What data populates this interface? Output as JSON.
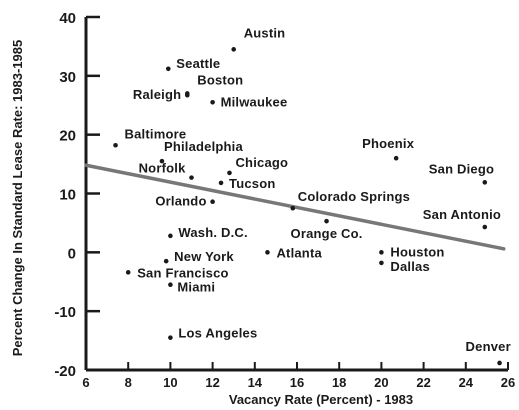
{
  "chart_data": {
    "type": "scatter",
    "xlabel": "Vacancy Rate (Percent) - 1983",
    "ylabel": "Percent Change In Standard Lease Rate: 1983-1985",
    "xlim": [
      6,
      26
    ],
    "ylim": [
      -20,
      40
    ],
    "x_ticks": [
      6,
      8,
      10,
      12,
      14,
      16,
      18,
      20,
      22,
      24,
      26
    ],
    "y_ticks": [
      -20,
      -10,
      0,
      10,
      20,
      30,
      40
    ],
    "grid": false,
    "trendline": {
      "x": [
        6,
        25.8
      ],
      "y": [
        14.8,
        0.6
      ]
    },
    "points": [
      {
        "label": "Austin",
        "x": 13.0,
        "y": 34.5
      },
      {
        "label": "Seattle",
        "x": 9.9,
        "y": 31.2
      },
      {
        "label": "Boston",
        "x": 10.8,
        "y": 27.0
      },
      {
        "label": "Raleigh",
        "x": 10.8,
        "y": 26.7
      },
      {
        "label": "Milwaukee",
        "x": 12.0,
        "y": 25.5
      },
      {
        "label": "Baltimore",
        "x": 7.4,
        "y": 18.2
      },
      {
        "label": "Philadelphia",
        "x": 9.6,
        "y": 15.5
      },
      {
        "label": "Chicago",
        "x": 12.8,
        "y": 13.5
      },
      {
        "label": "Norfolk",
        "x": 11.0,
        "y": 12.7
      },
      {
        "label": "Tucson",
        "x": 12.4,
        "y": 11.8
      },
      {
        "label": "Orlando",
        "x": 12.0,
        "y": 8.6
      },
      {
        "label": "Colorado Springs",
        "x": 15.8,
        "y": 7.5
      },
      {
        "label": "Orange Co.",
        "x": 17.4,
        "y": 5.3
      },
      {
        "label": "Wash. D.C.",
        "x": 10.0,
        "y": 2.8
      },
      {
        "label": "Phoenix",
        "x": 20.7,
        "y": 16.0
      },
      {
        "label": "San Diego",
        "x": 24.9,
        "y": 11.9
      },
      {
        "label": "San Antonio",
        "x": 24.9,
        "y": 4.3
      },
      {
        "label": "Houston",
        "x": 20.0,
        "y": 0.0
      },
      {
        "label": "Dallas",
        "x": 20.0,
        "y": -1.8
      },
      {
        "label": "Atlanta",
        "x": 14.6,
        "y": 0.0
      },
      {
        "label": "New York",
        "x": 9.8,
        "y": -1.5
      },
      {
        "label": "San Francisco",
        "x": 8.0,
        "y": -3.4
      },
      {
        "label": "Miami",
        "x": 10.0,
        "y": -5.5
      },
      {
        "label": "Los Angeles",
        "x": 10.0,
        "y": -14.5
      },
      {
        "label": "Denver",
        "x": 25.6,
        "y": -18.8
      }
    ]
  }
}
